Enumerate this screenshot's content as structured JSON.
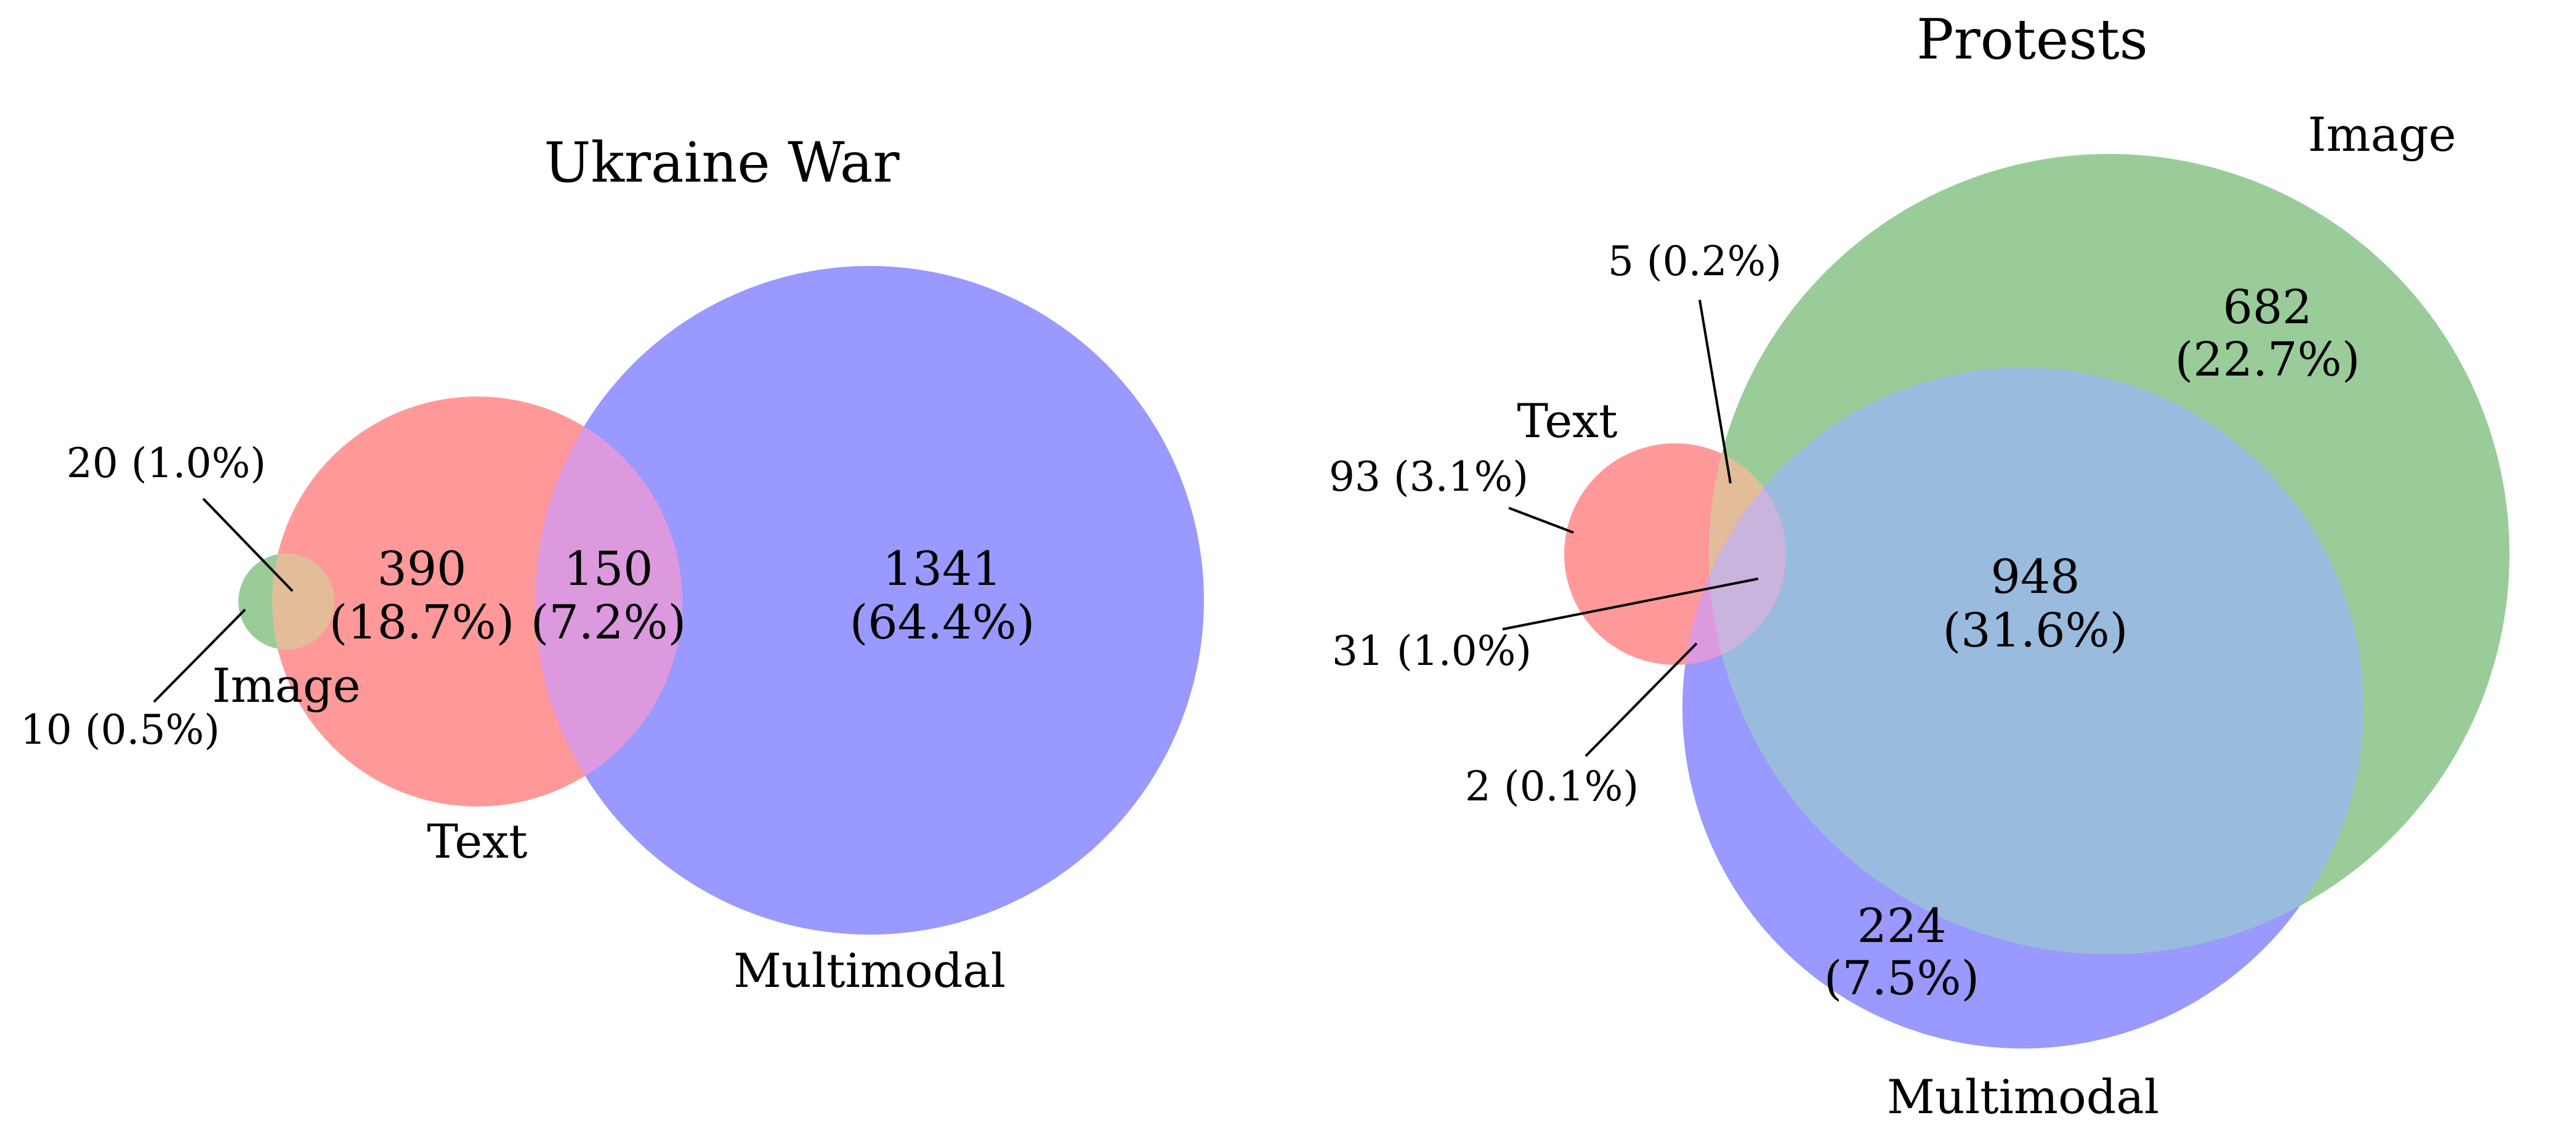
{
  "figure": {
    "colors": {
      "text": "#ff9999",
      "image": "#99cc99",
      "multimodal": "#9999ff",
      "text_image": "#e3bd99",
      "text_multimodal": "#dd99dd",
      "image_multimodal": "#99bbdd",
      "all_three": "#c8b4dd"
    },
    "diagrams": [
      {
        "key": "ukraine",
        "title": "Ukraine War",
        "sets": {
          "text": "Text",
          "image": "Image",
          "multimodal": "Multimodal"
        },
        "regions": [
          {
            "id": "text_only",
            "sets": [
              "Text"
            ],
            "count": "390",
            "percent": "(18.7%)"
          },
          {
            "id": "text_multimodal",
            "sets": [
              "Text",
              "Multimodal"
            ],
            "count": "150",
            "percent": "(7.2%)"
          },
          {
            "id": "multimodal_only",
            "sets": [
              "Multimodal"
            ],
            "count": "1341",
            "percent": "(64.4%)"
          },
          {
            "id": "text_image",
            "sets": [
              "Text",
              "Image"
            ],
            "label": "20 (1.0%)"
          },
          {
            "id": "image_only",
            "sets": [
              "Image"
            ],
            "label": "10 (0.5%)"
          }
        ]
      },
      {
        "key": "protests",
        "title": "Protests",
        "sets": {
          "text": "Text",
          "image": "Image",
          "multimodal": "Multimodal"
        },
        "regions": [
          {
            "id": "image_only",
            "sets": [
              "Image"
            ],
            "count": "682",
            "percent": "(22.7%)"
          },
          {
            "id": "image_multimodal",
            "sets": [
              "Image",
              "Multimodal"
            ],
            "count": "948",
            "percent": "(31.6%)"
          },
          {
            "id": "multimodal_only",
            "sets": [
              "Multimodal"
            ],
            "count": "224",
            "percent": "(7.5%)"
          },
          {
            "id": "text_only",
            "sets": [
              "Text"
            ],
            "label": "93 (3.1%)"
          },
          {
            "id": "text_image",
            "sets": [
              "Text",
              "Image"
            ],
            "label": "5 (0.2%)"
          },
          {
            "id": "all_three",
            "sets": [
              "Text",
              "Image",
              "Multimodal"
            ],
            "label": "31 (1.0%)"
          },
          {
            "id": "text_multimodal",
            "sets": [
              "Text",
              "Multimodal"
            ],
            "label": "2 (0.1%)"
          }
        ]
      }
    ]
  }
}
